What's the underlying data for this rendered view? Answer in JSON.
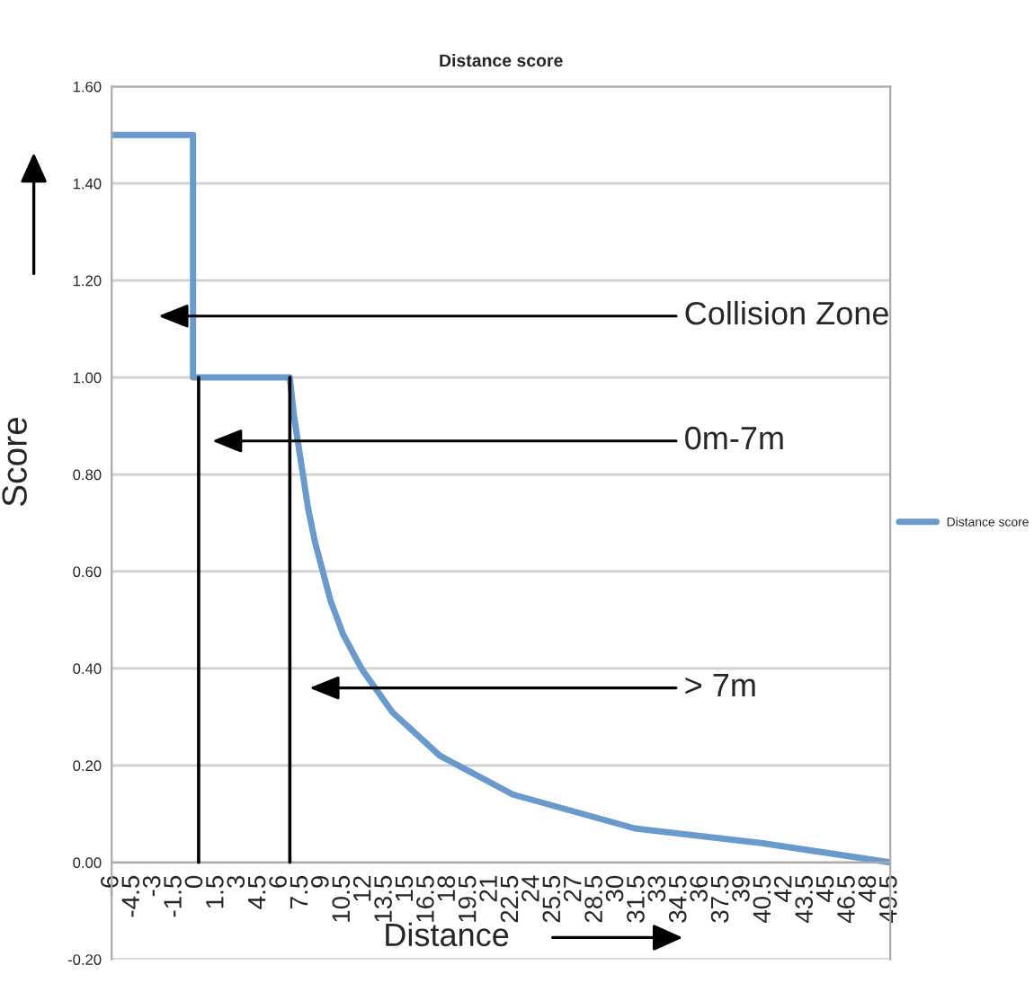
{
  "chart_data": {
    "type": "line",
    "title": "Distance score",
    "xlabel": "Distance",
    "ylabel": "Score",
    "series": [
      {
        "name": "Distance score",
        "color": "#6a99cb",
        "x": [
          -6,
          -0.2,
          -0.2,
          6.7,
          7.0,
          8.0,
          8.5,
          9.6,
          10.5,
          11.8,
          14.0,
          17.4,
          22.6,
          31.3,
          40.3,
          49.5
        ],
        "values": [
          1.5,
          1.5,
          1.0,
          1.0,
          0.92,
          0.73,
          0.66,
          0.54,
          0.47,
          0.4,
          0.31,
          0.22,
          0.14,
          0.07,
          0.04,
          0.0
        ]
      },
      {
        "color": "#000000",
        "x": [
          0.2,
          0.2
        ],
        "values": [
          0,
          1.0
        ]
      },
      {
        "color": "#000000",
        "x": [
          6.7,
          6.7
        ],
        "values": [
          0,
          1.0
        ]
      }
    ],
    "annotations": [
      "Collision Zone",
      "0m-7m",
      "> 7m"
    ],
    "xlim": [
      -6,
      49.5
    ],
    "xticks": [
      -6,
      -4.5,
      -3,
      -1.5,
      0,
      1.5,
      3,
      4.5,
      6,
      7.5,
      9,
      10.5,
      12,
      13.5,
      15,
      16.5,
      18,
      19.5,
      21,
      22.5,
      24,
      25.5,
      27,
      28.5,
      30,
      31.5,
      33,
      34.5,
      36,
      37.5,
      39,
      40.5,
      42,
      43.5,
      45,
      46.5,
      48,
      49.5
    ],
    "ylim": [
      -0.2,
      1.6
    ],
    "yticks": [
      {
        "value": -0.2,
        "label": "-0.20"
      },
      {
        "value": 0,
        "label": "0.00"
      },
      {
        "value": 0.2,
        "label": "0.20"
      },
      {
        "value": 0.4,
        "label": "0.40"
      },
      {
        "value": 0.6,
        "label": "0.60"
      },
      {
        "value": 0.8,
        "label": "0.80"
      },
      {
        "value": 1.0,
        "label": "1.00"
      },
      {
        "value": 1.2,
        "label": "1.20"
      },
      {
        "value": 1.4,
        "label": "1.40"
      },
      {
        "value": 1.6,
        "label": "1.60"
      }
    ],
    "grid": "y",
    "legend": "right",
    "marker": "none",
    "line_style": "solid"
  }
}
